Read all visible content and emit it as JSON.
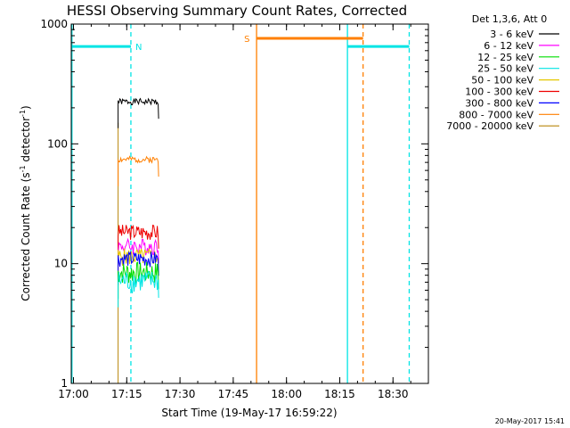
{
  "chart_data": {
    "type": "line",
    "title": "HESSI Observing Summary Count Rates, Corrected",
    "xlabel": "Start Time (19-May-17 16:59:22)",
    "ylabel": {
      "prefix": "Corrected Count Rate (s",
      "sup1": "-1",
      "mid": " detector",
      "sup2": "-1",
      "suffix": ")"
    },
    "y_scale": "log",
    "ylim": [
      1,
      1000
    ],
    "xlim_minutes": [
      0,
      100.6
    ],
    "x_ticks": [
      {
        "m": 0.63,
        "label": "17:00"
      },
      {
        "m": 15.63,
        "label": "17:15"
      },
      {
        "m": 30.63,
        "label": "17:30"
      },
      {
        "m": 45.63,
        "label": "17:45"
      },
      {
        "m": 60.63,
        "label": "18:00"
      },
      {
        "m": 75.63,
        "label": "18:15"
      },
      {
        "m": 90.63,
        "label": "18:30"
      }
    ],
    "y_ticks": [
      {
        "v": 1,
        "label": "1"
      },
      {
        "v": 10,
        "label": "10"
      },
      {
        "v": 100,
        "label": "100"
      },
      {
        "v": 1000,
        "label": "1000"
      }
    ],
    "legend": {
      "header": "Det 1,3,6, Att 0",
      "placement": "right",
      "entries": [
        {
          "label": "3 - 6 keV",
          "color": "#000000"
        },
        {
          "label": "6 - 12 keV",
          "color": "#ff00ff"
        },
        {
          "label": "12 - 25 keV",
          "color": "#00dd00"
        },
        {
          "label": "25 - 50 keV",
          "color": "#00e5e5"
        },
        {
          "label": "50 - 100 keV",
          "color": "#e5c800"
        },
        {
          "label": "100 - 300 keV",
          "color": "#ee0000"
        },
        {
          "label": "300 - 800 keV",
          "color": "#0000ff"
        },
        {
          "label": "800 - 7000 keV",
          "color": "#ff7f00"
        },
        {
          "label": "7000 - 20000 keV",
          "color": "#b8860b"
        }
      ]
    },
    "data_window_minutes": [
      13.2,
      24.6
    ],
    "series": [
      {
        "name": "3 - 6 keV",
        "color": "#000000",
        "level": 225,
        "spread": 0.06,
        "seed": 1
      },
      {
        "name": "800 - 7000 keV",
        "color": "#ff7f00",
        "level": 74,
        "spread": 0.06,
        "seed": 2
      },
      {
        "name": "100 - 300 keV",
        "color": "#ee0000",
        "level": 18.5,
        "spread": 0.15,
        "seed": 3
      },
      {
        "name": "6 - 12 keV",
        "color": "#ff00ff",
        "level": 14,
        "spread": 0.16,
        "seed": 4
      },
      {
        "name": "50 - 100 keV",
        "color": "#e5c800",
        "level": 11.5,
        "spread": 0.17,
        "seed": 5
      },
      {
        "name": "300 - 800 keV",
        "color": "#0000ff",
        "level": 11,
        "spread": 0.15,
        "seed": 6
      },
      {
        "name": "12 - 25 keV",
        "color": "#00dd00",
        "level": 8.5,
        "spread": 0.22,
        "seed": 7
      },
      {
        "name": "25 - 50 keV",
        "color": "#00e5e5",
        "level": 7.2,
        "spread": 0.22,
        "seed": 8
      }
    ],
    "night_intervals": [
      {
        "label": "N",
        "color": "#00e5e5",
        "y": 650,
        "m_start": 0,
        "m_end": 16.8,
        "m_boundary": 0.2,
        "m_dashed": 16.8
      },
      {
        "label": "",
        "color": "#00e5e5",
        "y": 650,
        "m_start": 77.8,
        "m_end": 95.2,
        "m_boundary": 77.8,
        "m_dashed": 95.2
      }
    ],
    "saa_intervals": [
      {
        "label": "S",
        "color": "#ff7f00",
        "y": 760,
        "m_start": 52.2,
        "m_end": 82.2,
        "m_boundary": 52.2,
        "m_dashed": 82.2
      }
    ],
    "flare_marker_minutes": 13.2,
    "timestamp": "20-May-2017 15:41"
  }
}
